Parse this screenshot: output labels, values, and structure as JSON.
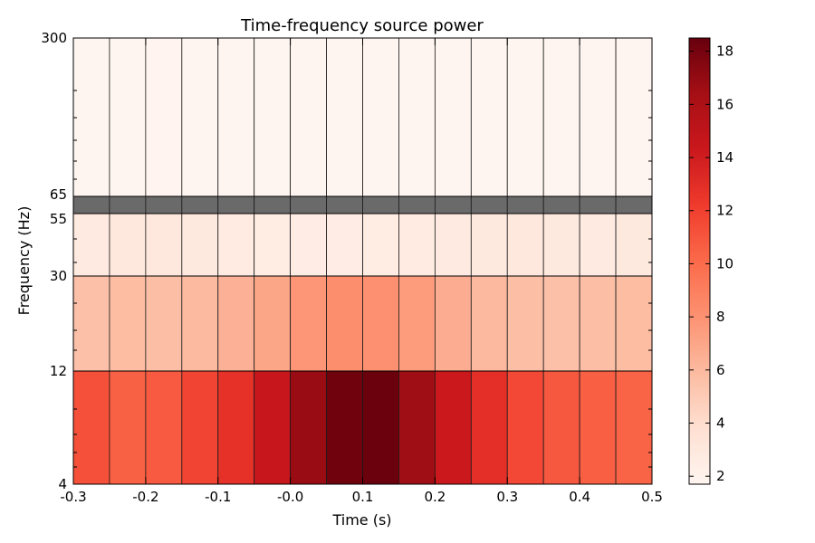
{
  "chart_data": {
    "type": "heatmap",
    "title": "Time-frequency source power",
    "xlabel": "Time (s)",
    "ylabel": "Frequency (Hz)",
    "time_bins": [
      -0.3,
      -0.25,
      -0.2,
      -0.15,
      -0.1,
      -0.05,
      0.0,
      0.05,
      0.1,
      0.15,
      0.2,
      0.25,
      0.3,
      0.35,
      0.4,
      0.45,
      0.5
    ],
    "x_ticks": [
      "-0.3",
      "-0.2",
      "-0.1",
      "-0.0",
      "0.1",
      "0.2",
      "0.3",
      "0.4",
      "0.5"
    ],
    "x_tick_values": [
      -0.3,
      -0.2,
      -0.1,
      0.0,
      0.1,
      0.2,
      0.3,
      0.4,
      0.5
    ],
    "frequency_bands": [
      {
        "low": 4,
        "high": 12,
        "values": [
          11.2,
          10.5,
          10.8,
          11.8,
          12.8,
          14.5,
          16.8,
          18.2,
          18.4,
          16.6,
          14.3,
          12.9,
          11.6,
          10.9,
          10.6,
          10.4
        ]
      },
      {
        "low": 12,
        "high": 30,
        "values": [
          5.6,
          5.8,
          5.7,
          5.9,
          6.4,
          7.0,
          7.8,
          8.2,
          8.1,
          7.5,
          6.6,
          6.0,
          5.7,
          5.6,
          5.7,
          5.8
        ]
      },
      {
        "low": 30,
        "high": 55,
        "values": [
          2.8,
          3.0,
          3.1,
          2.9,
          2.7,
          2.6,
          2.5,
          2.5,
          2.6,
          2.7,
          2.8,
          2.9,
          3.0,
          2.9,
          2.8,
          2.9
        ]
      },
      {
        "low": 55,
        "high": 65,
        "masked": true
      },
      {
        "low": 65,
        "high": 300,
        "values": [
          1.7,
          1.7,
          1.8,
          1.7,
          1.7,
          1.7,
          1.7,
          1.7,
          1.7,
          1.7,
          1.7,
          1.7,
          1.7,
          1.7,
          1.7,
          1.7
        ]
      }
    ],
    "y_ticks": [
      "4",
      "12",
      "30",
      "55",
      "65",
      "300"
    ],
    "colorbar": {
      "colormap": "Reds",
      "vmin": 1.7,
      "vmax": 18.5,
      "ticks": [
        2,
        4,
        6,
        8,
        10,
        12,
        14,
        16,
        18
      ]
    },
    "mask_color": "#6a6a6a",
    "grid": false
  }
}
